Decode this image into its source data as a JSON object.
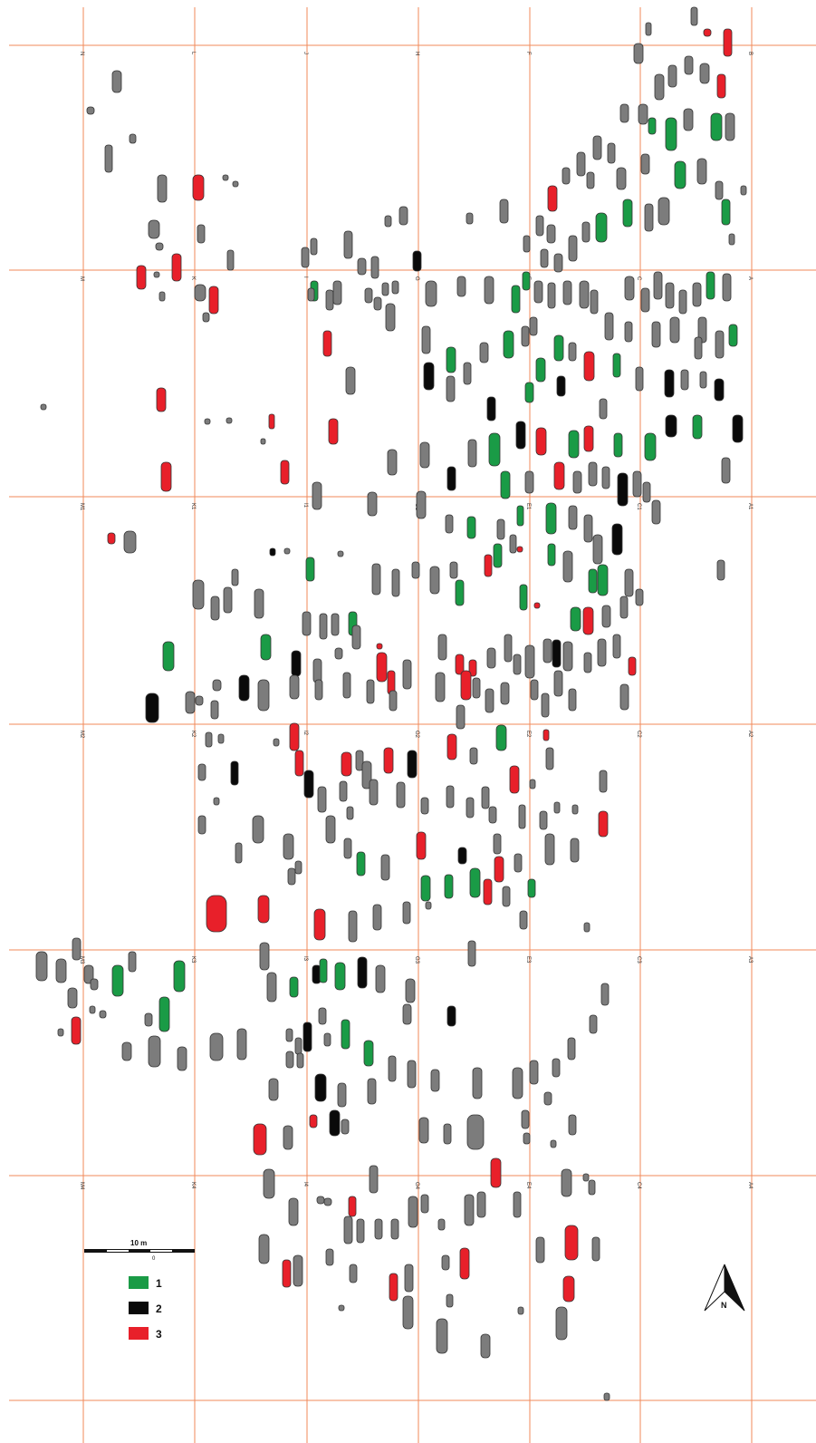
{
  "colors": {
    "grid": "#f08a5a",
    "cat1": "#1a9b46",
    "cat2": "#0a0a0a",
    "cat3": "#e8202a",
    "other": "#7c7c7c"
  },
  "grid": {
    "col_letters": [
      "N",
      "L",
      "J",
      "H",
      "F",
      "D",
      "B"
    ],
    "boundary_letters": [
      "M",
      "K",
      "I",
      "G",
      "E",
      "C",
      "A"
    ],
    "row_labels": {
      "r0": [
        "N",
        "L",
        "J",
        "H",
        "F",
        "D",
        "B"
      ],
      "r1": [
        "M",
        "K",
        "I",
        "G",
        "E",
        "C",
        "A"
      ],
      "r2": [
        "M1",
        "K1",
        "I1",
        "G1",
        "E1",
        "C1",
        "A1"
      ],
      "r3": [
        "M2",
        "K2",
        "I2",
        "G2",
        "E2",
        "C2",
        "A2"
      ],
      "r4": [
        "M3",
        "K3",
        "I3",
        "G3",
        "E3",
        "C3",
        "A3"
      ],
      "r5": [
        "M4",
        "K4",
        "I4",
        "G4",
        "E4",
        "C4",
        "A4"
      ]
    }
  },
  "scale_bar": {
    "label": "10 m",
    "sub": "0"
  },
  "legend": [
    {
      "key": "1",
      "color": "#1a9b46"
    },
    {
      "key": "2",
      "color": "#0a0a0a"
    },
    {
      "key": "3",
      "color": "#e8202a"
    }
  ],
  "north_arrow": {
    "label": "N"
  }
}
